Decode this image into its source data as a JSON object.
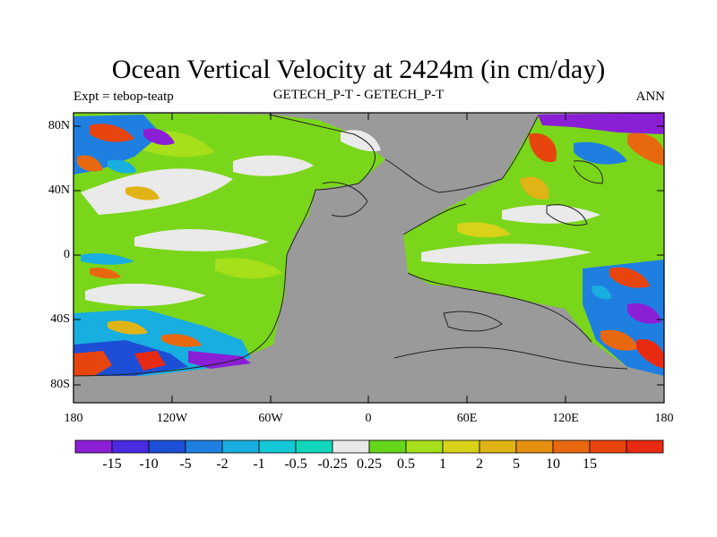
{
  "title": "Ocean Vertical Velocity at 2424m (in cm/day)",
  "left_subtitle": "Expt = tebop-teatp",
  "center_subtitle": "GETECH_P-T - GETECH_P-T",
  "right_subtitle": "ANN",
  "y_labels": [
    "80N",
    "40N",
    "0",
    "40S",
    "80S"
  ],
  "x_labels": [
    "180",
    "120W",
    "60W",
    "0",
    "60E",
    "120E",
    "180"
  ],
  "colorbar": {
    "colors": [
      "#8a1fd6",
      "#4a2be0",
      "#1c4ed6",
      "#1f7fe0",
      "#18aee0",
      "#14c8d8",
      "#12d6bc",
      "#e8e8e8",
      "#66d61a",
      "#a6e01a",
      "#d8d21a",
      "#e0b416",
      "#e69012",
      "#e8680f",
      "#e8440e",
      "#e82a12"
    ],
    "labels": [
      "-15",
      "-10",
      "-5",
      "-2",
      "-1",
      "-0.5",
      "-0.25",
      "0.25",
      "0.5",
      "1",
      "2",
      "5",
      "10",
      "15"
    ]
  },
  "colors": {
    "land": "#9a9a9a",
    "coast": "#222222"
  }
}
